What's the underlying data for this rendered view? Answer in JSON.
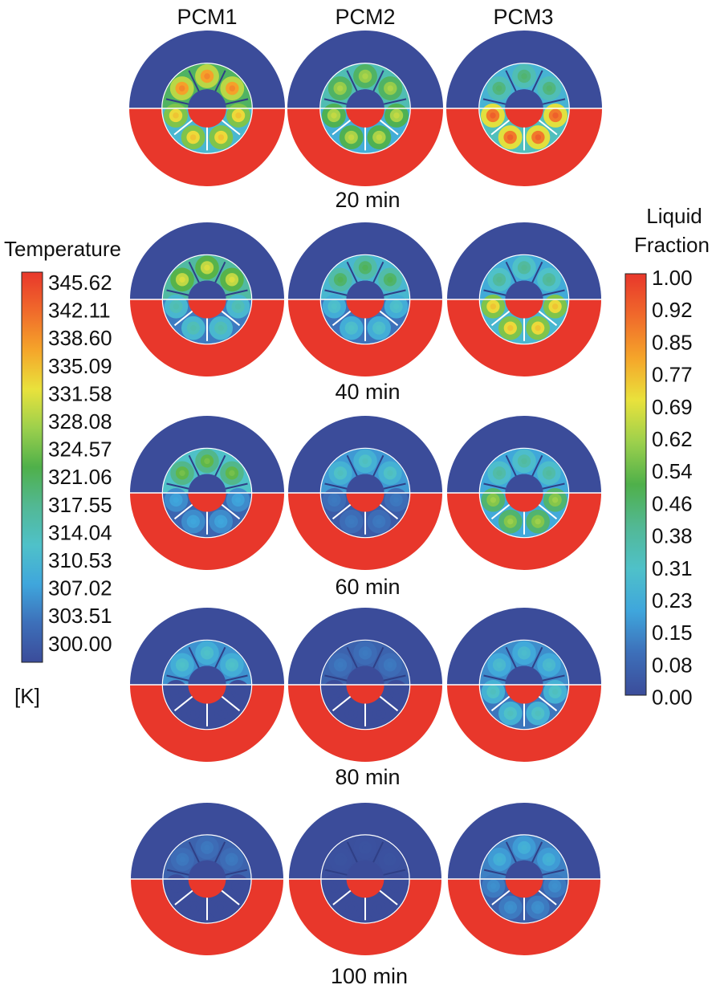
{
  "columns": [
    "PCM1",
    "PCM2",
    "PCM3"
  ],
  "rows": [
    {
      "time_label": "20 min"
    },
    {
      "time_label": "40 min"
    },
    {
      "time_label": "60 min"
    },
    {
      "time_label": "80 min"
    },
    {
      "time_label": "100 min"
    }
  ],
  "temperature_legend": {
    "title": "Temperature",
    "unit": "[K]",
    "ticks": [
      "345.62",
      "342.11",
      "338.60",
      "335.09",
      "331.58",
      "328.08",
      "324.57",
      "321.06",
      "317.55",
      "314.04",
      "310.53",
      "307.02",
      "303.51",
      "300.00"
    ]
  },
  "liquid_fraction_legend": {
    "title_line1": "Liquid",
    "title_line2": "Fraction",
    "ticks": [
      "1.00",
      "0.92",
      "0.85",
      "0.77",
      "0.69",
      "0.62",
      "0.54",
      "0.46",
      "0.38",
      "0.31",
      "0.23",
      "0.15",
      "0.08",
      "0.00"
    ]
  },
  "colors": {
    "outer_ring_top": "#3b4c9a",
    "outer_ring_bottom": "#e8372b",
    "low": "#3b4c9a",
    "high": "#e8372b",
    "fin": "#ffffff"
  },
  "hotspot_levels": {
    "PCM1": [
      0.85,
      0.68,
      0.55,
      0.3,
      0.12
    ],
    "PCM2": [
      0.62,
      0.48,
      0.32,
      0.12,
      0.02
    ],
    "PCM3": [
      0.45,
      0.4,
      0.38,
      0.28,
      0.24
    ]
  },
  "bottom_levels": {
    "PCM1": [
      0.75,
      0.35,
      0.2,
      0.0,
      0.0
    ],
    "PCM2": [
      0.65,
      0.3,
      0.12,
      0.0,
      0.0
    ],
    "PCM3": [
      0.92,
      0.75,
      0.6,
      0.32,
      0.16
    ]
  }
}
